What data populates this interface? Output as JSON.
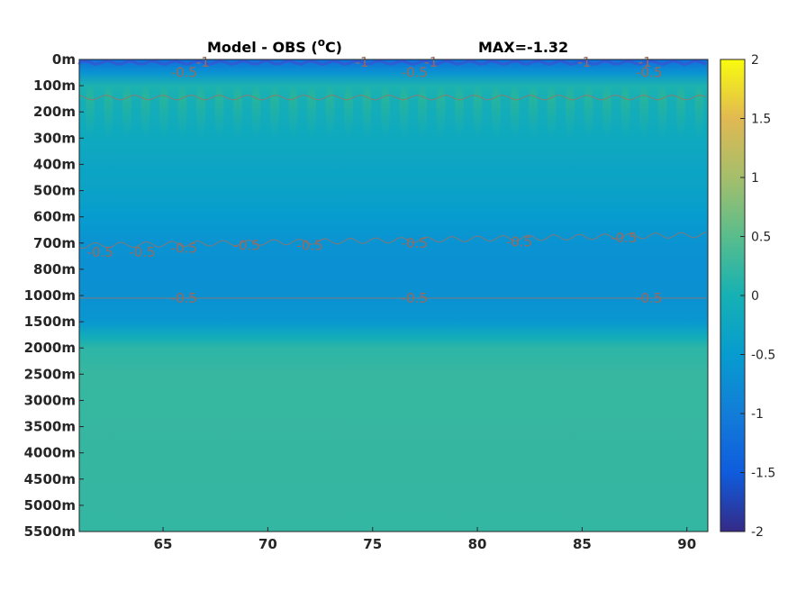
{
  "chart_data": {
    "type": "heatmap",
    "title": "Model - OBS (",
    "title_sup": "o",
    "title_unit": "C)",
    "subtitle": "MAX=-1.32",
    "x": {
      "ticks": [
        65,
        70,
        75,
        80,
        85,
        90
      ],
      "range": [
        61,
        91
      ]
    },
    "y": {
      "tick_labels": [
        "0m",
        "100m",
        "200m",
        "300m",
        "400m",
        "500m",
        "600m",
        "700m",
        "800m",
        "1000m",
        "1500m",
        "2000m",
        "2500m",
        "3000m",
        "3500m",
        "4000m",
        "4500m",
        "5000m",
        "5500m"
      ]
    },
    "colorbar": {
      "range": [
        -2,
        2
      ],
      "tick_values": [
        2,
        1.5,
        1,
        0.5,
        0,
        -0.5,
        -1,
        -1.5,
        -2
      ],
      "tick_labels": [
        "2",
        "1.5",
        "1",
        "0.5",
        "0",
        "-0.5",
        "-1",
        "-1.5",
        "-2"
      ],
      "colormap": "parula"
    },
    "profile": [
      {
        "level": 0,
        "value": -1.25
      },
      {
        "level": 0.5,
        "value": -0.65
      },
      {
        "level": 1,
        "value": 0.05
      },
      {
        "level": 2,
        "value": -0.12
      },
      {
        "level": 3,
        "value": -0.2
      },
      {
        "level": 4,
        "value": -0.28
      },
      {
        "level": 5,
        "value": -0.36
      },
      {
        "level": 6,
        "value": -0.5
      },
      {
        "level": 7,
        "value": -0.65
      },
      {
        "level": 8,
        "value": -0.7
      },
      {
        "level": 9,
        "value": -0.68
      },
      {
        "level": 10,
        "value": -0.58
      },
      {
        "level": 10.6,
        "value": -0.1
      },
      {
        "level": 11,
        "value": 0.18
      },
      {
        "level": 12,
        "value": 0.25
      },
      {
        "level": 18,
        "value": 0.22
      }
    ],
    "contours": [
      {
        "level_value": -0.5,
        "depth_level": 1.45
      },
      {
        "level_value": -0.5,
        "depth_level": 7.1
      },
      {
        "level_value": -0.5,
        "depth_level": 9.1
      }
    ],
    "contour_labels": [
      {
        "text": "-1",
        "x": 66.9,
        "level": 0.1
      },
      {
        "text": "-0.5",
        "x": 66.0,
        "level": 0.5
      },
      {
        "text": "-1",
        "x": 74.5,
        "level": 0.1
      },
      {
        "text": "-0.5",
        "x": 77.0,
        "level": 0.5
      },
      {
        "text": "-1",
        "x": 77.8,
        "level": 0.1
      },
      {
        "text": "-1",
        "x": 85.1,
        "level": 0.1
      },
      {
        "text": "-1",
        "x": 88.0,
        "level": 0.1
      },
      {
        "text": "-0.5",
        "x": 88.2,
        "level": 0.5
      },
      {
        "text": "-0.5",
        "x": 62.0,
        "level": 7.35
      },
      {
        "text": "-0.5",
        "x": 64.0,
        "level": 7.35
      },
      {
        "text": "-0.5",
        "x": 66.0,
        "level": 7.2
      },
      {
        "text": "-0.5",
        "x": 69.0,
        "level": 7.1
      },
      {
        "text": "-0.5",
        "x": 72.0,
        "level": 7.1
      },
      {
        "text": "-0.5",
        "x": 77.0,
        "level": 7.0
      },
      {
        "text": "-0.5",
        "x": 82.0,
        "level": 6.95
      },
      {
        "text": "-0.5",
        "x": 87.0,
        "level": 6.8
      },
      {
        "text": "-0.5",
        "x": 66.0,
        "level": 9.1
      },
      {
        "text": "-0.5",
        "x": 77.0,
        "level": 9.1
      },
      {
        "text": "-0.5",
        "x": 88.2,
        "level": 9.1
      }
    ]
  }
}
